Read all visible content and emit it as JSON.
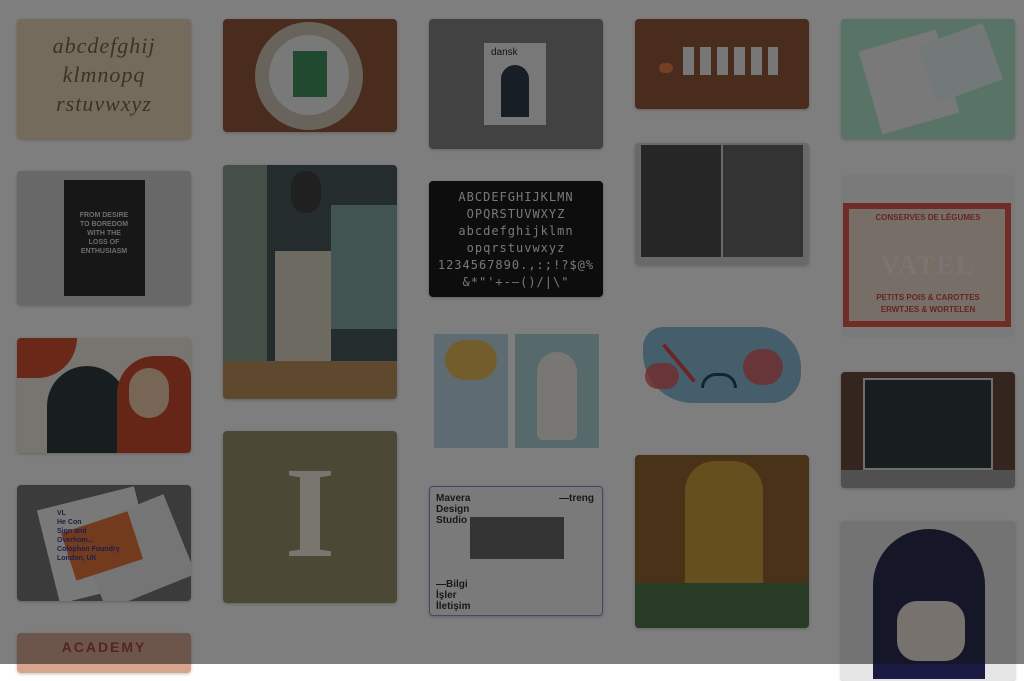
{
  "colors": {
    "overlay": "#141414",
    "page_bg": "#ffffff"
  },
  "gallery": {
    "col1": {
      "alphabet_script": "abcdefghij\nklmnopq\nrstuvwxyz",
      "poster_text": "FROM DESIRE\nTO BOREDOM\nWITH THE\nLOSS OF\nENTHUSIASM",
      "editorial_illustration": "",
      "brochure_text": "VL\nHe Con\nSign and\nOverhom...\nColophon Foundry\nLondon, UK",
      "academy_banner": "ACADEMY"
    },
    "col2": {
      "plate_object": "",
      "interior_photo": "",
      "letter_i": "I"
    },
    "col3": {
      "magazine_title": "dansk",
      "typeface_specimen": "ABCDEFGHIJKLMN\nOPQRSTUVWXYZ\nabcdefghijklmn\nopqrstuvwxyz\n1234567890.,:;!?$@%\n&*\"'+-—()/|\\\"",
      "illustration_pair": "",
      "studio_poster": {
        "left": "Mavera\nDesign\nStudio",
        "right": "—treng",
        "bottom": "—Bilgi\nİşler\nİletişim"
      }
    },
    "col4": {
      "bottles": "",
      "city_spread": "",
      "sick_map": "",
      "kiss_painting": ""
    },
    "col5": {
      "newspaper": "",
      "vatel_label": {
        "header": "CONSERVES DE LÉGUMES",
        "brand": "VATEL",
        "line1": "PETITS POIS & CAROTTES",
        "line2": "ERWTJES & WORTELEN"
      },
      "storefront": "",
      "portrait": ""
    }
  }
}
